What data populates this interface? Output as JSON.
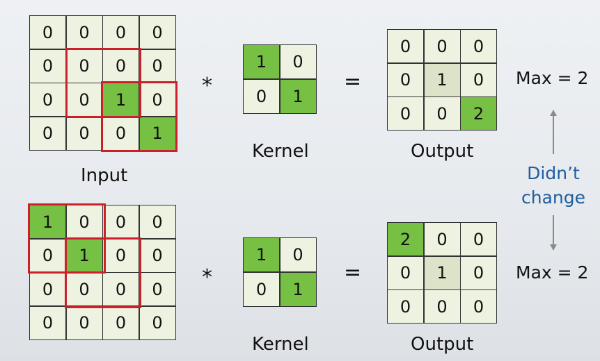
{
  "top": {
    "input_label": "Input",
    "kernel_label": "Kernel",
    "output_label": "Output",
    "max_label": "Max = 2",
    "operator_conv": "*",
    "operator_eq": "=",
    "input": [
      [
        "0",
        "0",
        "0",
        "0"
      ],
      [
        "0",
        "0",
        "0",
        "0"
      ],
      [
        "0",
        "0",
        "1",
        "0"
      ],
      [
        "0",
        "0",
        "0",
        "1"
      ]
    ],
    "kernel": [
      [
        "1",
        "0"
      ],
      [
        "0",
        "1"
      ]
    ],
    "output": [
      [
        "0",
        "0",
        "0"
      ],
      [
        "0",
        "1",
        "0"
      ],
      [
        "0",
        "0",
        "2"
      ]
    ]
  },
  "bottom": {
    "kernel_label": "Kernel",
    "output_label": "Output",
    "max_label": "Max = 2",
    "operator_conv": "*",
    "operator_eq": "=",
    "input": [
      [
        "1",
        "0",
        "0",
        "0"
      ],
      [
        "0",
        "1",
        "0",
        "0"
      ],
      [
        "0",
        "0",
        "0",
        "0"
      ],
      [
        "0",
        "0",
        "0",
        "0"
      ]
    ],
    "kernel": [
      [
        "1",
        "0"
      ],
      [
        "0",
        "1"
      ]
    ],
    "output": [
      [
        "2",
        "0",
        "0"
      ],
      [
        "0",
        "1",
        "0"
      ],
      [
        "0",
        "0",
        "0"
      ]
    ]
  },
  "note": {
    "line1": "Didn’t",
    "line2": "change"
  },
  "colors": {
    "green": "#76c043",
    "pale_green": "#dde3c9",
    "cell": "#eef2e0",
    "red": "#cc1f2a",
    "note_blue": "#1f5fa0"
  }
}
